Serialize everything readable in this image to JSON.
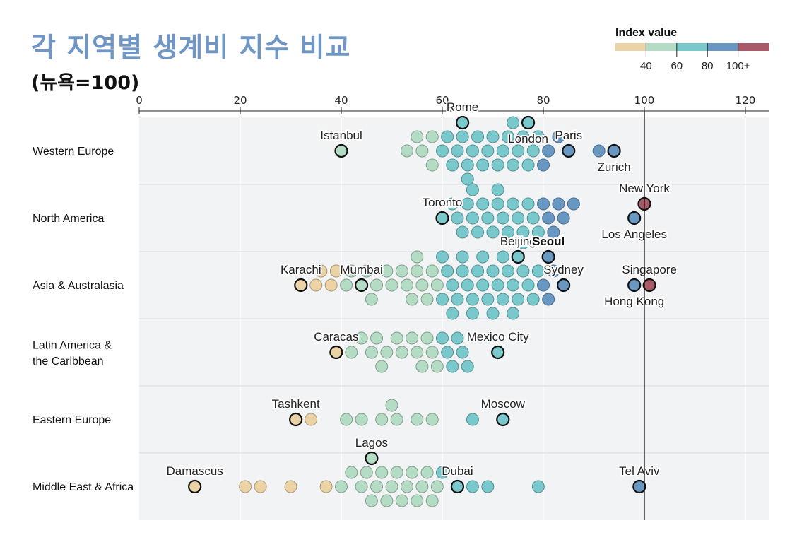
{
  "title": "각 지역별 생계비 지수 비교",
  "subtitle": "(뉴욕=100)",
  "chart_data": {
    "type": "scatter",
    "subtype": "beeswarm",
    "xlim": [
      0,
      125
    ],
    "x_ticks": [
      0,
      20,
      40,
      60,
      80,
      100,
      120
    ],
    "reference_line": 100,
    "grid": true,
    "legend": {
      "title": "Index value",
      "position": "top-right",
      "labels": [
        "40",
        "60",
        "80",
        "100+"
      ],
      "colors": [
        "#ecd3a6",
        "#b4dcc4",
        "#78c8cc",
        "#6898c2",
        "#a85a68"
      ]
    },
    "regions": [
      {
        "name": "Western Europe",
        "values": [
          53,
          55,
          56,
          58,
          58,
          60,
          61,
          62,
          63,
          64,
          65,
          65,
          66,
          67,
          68,
          69,
          70,
          71,
          72,
          73,
          74,
          74,
          75,
          76,
          77,
          78,
          79,
          80,
          81,
          83,
          91
        ],
        "cities": [
          {
            "name": "Istanbul",
            "value": 40,
            "label_pos": "above"
          },
          {
            "name": "Rome",
            "value": 64,
            "label_pos": "above"
          },
          {
            "name": "London",
            "value": 77,
            "label_pos": "below"
          },
          {
            "name": "Paris",
            "value": 85,
            "label_pos": "above"
          },
          {
            "name": "Zurich",
            "value": 94,
            "label_pos": "below"
          }
        ]
      },
      {
        "name": "North America",
        "values": [
          62,
          63,
          64,
          65,
          66,
          66,
          67,
          68,
          69,
          70,
          71,
          71,
          72,
          73,
          74,
          75,
          76,
          77,
          78,
          79,
          80,
          81,
          82,
          83,
          84,
          86
        ],
        "cities": [
          {
            "name": "Toronto",
            "value": 60,
            "label_pos": "above"
          },
          {
            "name": "New York",
            "value": 100,
            "label_pos": "above"
          },
          {
            "name": "Los Angeles",
            "value": 98,
            "label_pos": "below"
          }
        ]
      },
      {
        "name": "Asia & Australasia",
        "values": [
          35,
          36,
          38,
          39,
          41,
          42,
          45,
          46,
          47,
          49,
          50,
          52,
          53,
          54,
          55,
          55,
          56,
          57,
          58,
          59,
          60,
          60,
          61,
          62,
          62,
          63,
          64,
          64,
          65,
          66,
          66,
          67,
          68,
          68,
          69,
          70,
          70,
          71,
          72,
          72,
          73,
          74,
          74,
          75,
          76,
          76,
          77,
          78,
          79,
          80,
          81,
          82
        ],
        "cities": [
          {
            "name": "Karachi",
            "value": 32,
            "label_pos": "above"
          },
          {
            "name": "Mumbai",
            "value": 44,
            "label_pos": "above"
          },
          {
            "name": "Beijing",
            "value": 75,
            "label_pos": "above"
          },
          {
            "name": "Seoul",
            "value": 81,
            "label_pos": "above",
            "bold": true
          },
          {
            "name": "Sydney",
            "value": 84,
            "label_pos": "above"
          },
          {
            "name": "Singapore",
            "value": 101,
            "label_pos": "above"
          },
          {
            "name": "Hong Kong",
            "value": 98,
            "label_pos": "below"
          }
        ]
      },
      {
        "name": "Latin America & the Caribbean",
        "values": [
          42,
          44,
          46,
          47,
          48,
          49,
          51,
          52,
          54,
          55,
          56,
          57,
          58,
          59,
          60,
          61,
          62,
          63,
          64,
          65
        ],
        "cities": [
          {
            "name": "Caracas",
            "value": 39,
            "label_pos": "above"
          },
          {
            "name": "Mexico City",
            "value": 71,
            "label_pos": "above"
          }
        ]
      },
      {
        "name": "Eastern Europe",
        "values": [
          34,
          41,
          44,
          48,
          50,
          51,
          55,
          58,
          66
        ],
        "cities": [
          {
            "name": "Tashkent",
            "value": 31,
            "label_pos": "above"
          },
          {
            "name": "Moscow",
            "value": 72,
            "label_pos": "above"
          }
        ]
      },
      {
        "name": "Middle East & Africa",
        "values": [
          21,
          24,
          30,
          37,
          40,
          42,
          44,
          45,
          46,
          47,
          48,
          49,
          50,
          51,
          52,
          53,
          54,
          55,
          56,
          57,
          58,
          59,
          60,
          66,
          69,
          79
        ],
        "cities": [
          {
            "name": "Damascus",
            "value": 11,
            "label_pos": "above"
          },
          {
            "name": "Lagos",
            "value": 46,
            "label_pos": "above"
          },
          {
            "name": "Dubai",
            "value": 63,
            "label_pos": "above"
          },
          {
            "name": "Tel Aviv",
            "value": 99,
            "label_pos": "above"
          }
        ]
      }
    ]
  }
}
